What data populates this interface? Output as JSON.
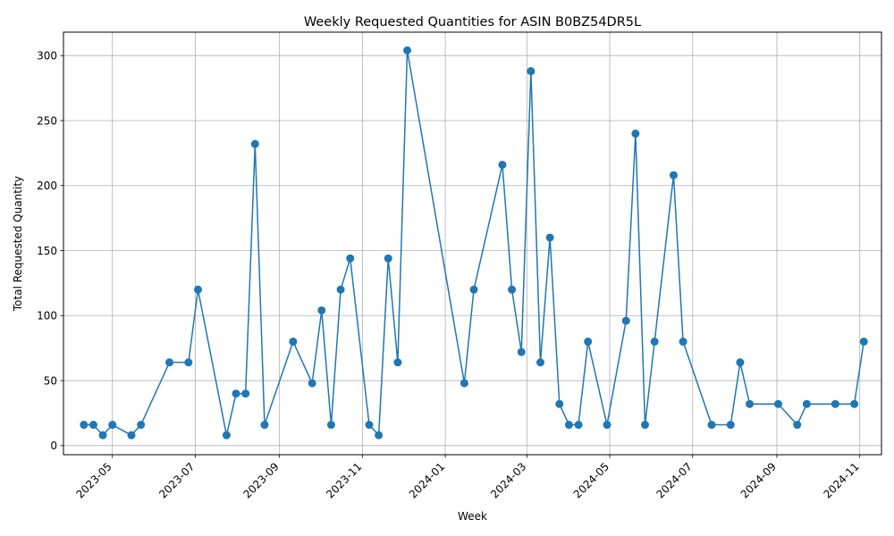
{
  "chart_data": {
    "type": "line",
    "title": "Weekly Requested Quantities for ASIN B0BZ54DR5L",
    "xlabel": "Week",
    "ylabel": "Total Requested Quantity",
    "x_axis": "date",
    "xlim": [
      "2023-03-26",
      "2024-11-17"
    ],
    "ylim": [
      -7,
      318
    ],
    "yticks": [
      0,
      50,
      100,
      150,
      200,
      250,
      300
    ],
    "xticks": [
      "2023-05-01",
      "2023-07-01",
      "2023-09-01",
      "2023-11-01",
      "2024-01-01",
      "2024-03-01",
      "2024-05-01",
      "2024-07-01",
      "2024-09-01",
      "2024-11-01"
    ],
    "xtick_labels": [
      "2023-05",
      "2023-07",
      "2023-09",
      "2023-11",
      "2024-01",
      "2024-03",
      "2024-05",
      "2024-07",
      "2024-09",
      "2024-11"
    ],
    "grid": true,
    "line_color": "#1f77b4",
    "marker": "circle",
    "series": [
      {
        "x": [
          "2023-04-10",
          "2023-04-17",
          "2023-04-24",
          "2023-05-01",
          "2023-05-15",
          "2023-05-22",
          "2023-06-12",
          "2023-06-26",
          "2023-07-03",
          "2023-07-24",
          "2023-07-31",
          "2023-08-07",
          "2023-08-14",
          "2023-08-21",
          "2023-09-11",
          "2023-09-25",
          "2023-10-02",
          "2023-10-09",
          "2023-10-16",
          "2023-10-23",
          "2023-11-06",
          "2023-11-13",
          "2023-11-20",
          "2023-11-27",
          "2023-12-04",
          "2024-01-15",
          "2024-01-22",
          "2024-02-12",
          "2024-02-19",
          "2024-02-26",
          "2024-03-04",
          "2024-03-11",
          "2024-03-18",
          "2024-03-25",
          "2024-04-01",
          "2024-04-08",
          "2024-04-15",
          "2024-04-29",
          "2024-05-13",
          "2024-05-20",
          "2024-05-27",
          "2024-06-03",
          "2024-06-17",
          "2024-06-24",
          "2024-07-15",
          "2024-07-29",
          "2024-08-05",
          "2024-08-12",
          "2024-09-02",
          "2024-09-16",
          "2024-09-23",
          "2024-10-14",
          "2024-10-28",
          "2024-11-04"
        ],
        "values": [
          16,
          16,
          8,
          16,
          8,
          16,
          64,
          64,
          120,
          8,
          40,
          40,
          232,
          16,
          80,
          48,
          104,
          16,
          120,
          144,
          16,
          8,
          144,
          64,
          304,
          48,
          120,
          216,
          120,
          72,
          288,
          64,
          160,
          32,
          16,
          16,
          80,
          16,
          96,
          240,
          16,
          80,
          208,
          80,
          16,
          16,
          64,
          32,
          32,
          16,
          32,
          32,
          32,
          80
        ]
      }
    ]
  }
}
